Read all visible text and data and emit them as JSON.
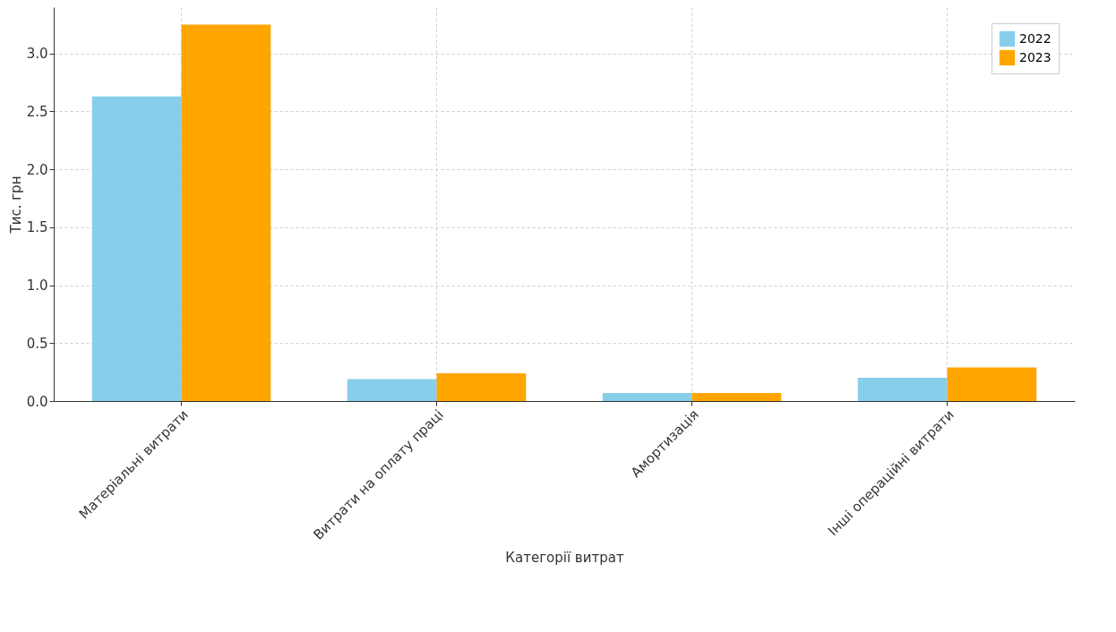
{
  "chart_data": {
    "type": "bar",
    "xlabel": "Категорії витрат",
    "ylabel": "Тис. грн",
    "categories": [
      "Матеріальні витрати",
      "Витрати на оплату праці",
      "Амортизація",
      "Інші операційні витрати"
    ],
    "series": [
      {
        "name": "2022",
        "color": "#87ceeb",
        "values": [
          2.63,
          0.19,
          0.07,
          0.2
        ]
      },
      {
        "name": "2023",
        "color": "#ffa500",
        "values": [
          3.25,
          0.24,
          0.07,
          0.29
        ]
      }
    ],
    "ylim": [
      0,
      3.4
    ],
    "yticks": [
      {
        "value": 0,
        "label": "0.0"
      },
      0.5,
      {
        "value": 1,
        "label": "1.0"
      },
      1.5,
      {
        "value": 2,
        "label": "2.0"
      },
      2.5,
      {
        "value": 3,
        "label": "3.0"
      }
    ],
    "grid": true,
    "legend": "top right"
  }
}
